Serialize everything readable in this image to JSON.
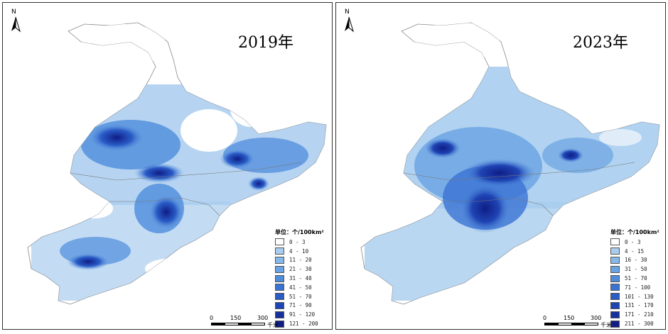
{
  "maps": [
    {
      "year_title": "2019年",
      "legend": {
        "title": "单位：个/100km²",
        "classes": [
          {
            "label": "0 - 3",
            "color": "#ffffff"
          },
          {
            "label": "4 - 10",
            "color": "#a9cdee"
          },
          {
            "label": "11 - 20",
            "color": "#86b9ea"
          },
          {
            "label": "21 - 30",
            "color": "#6aa3e3"
          },
          {
            "label": "31 - 40",
            "color": "#4f8cdc"
          },
          {
            "label": "41 - 50",
            "color": "#3a73d4"
          },
          {
            "label": "51 - 70",
            "color": "#2a5cc7"
          },
          {
            "label": "71 - 90",
            "color": "#1f44b4"
          },
          {
            "label": "91 - 120",
            "color": "#17309e"
          },
          {
            "label": "121 - 200",
            "color": "#0f1d86"
          }
        ]
      },
      "scale": {
        "ticks": [
          "0",
          "150",
          "300"
        ],
        "unit": "千米"
      },
      "north_label": "N"
    },
    {
      "year_title": "2023年",
      "legend": {
        "title": "单位：个/100km²",
        "classes": [
          {
            "label": "0 - 3",
            "color": "#ffffff"
          },
          {
            "label": "4 - 15",
            "color": "#a9cdee"
          },
          {
            "label": "16 - 30",
            "color": "#86b9ea"
          },
          {
            "label": "31 - 50",
            "color": "#6aa3e3"
          },
          {
            "label": "51 - 70",
            "color": "#4f8cdc"
          },
          {
            "label": "71 - 100",
            "color": "#3a73d4"
          },
          {
            "label": "101 - 130",
            "color": "#2a5cc7"
          },
          {
            "label": "131 - 170",
            "color": "#1f44b4"
          },
          {
            "label": "171 - 210",
            "color": "#17309e"
          },
          {
            "label": "211 - 300",
            "color": "#0f1d86"
          }
        ]
      },
      "scale": {
        "ticks": [
          "0",
          "150",
          "300"
        ],
        "unit": "千米"
      },
      "north_label": "N"
    }
  ]
}
